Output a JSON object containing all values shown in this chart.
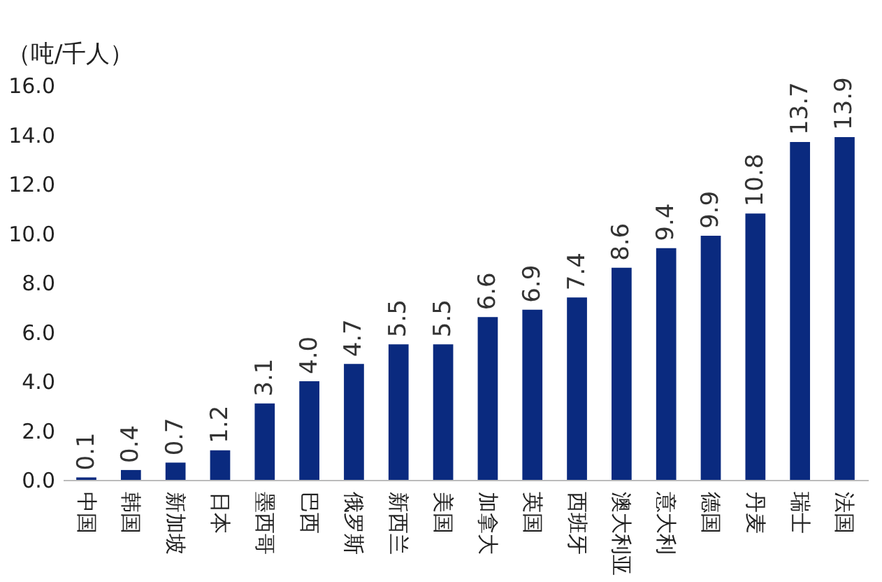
{
  "chart_data": {
    "type": "bar",
    "ylabel": "（吨/千人）",
    "categories": [
      "中国",
      "韩国",
      "新加坡",
      "日本",
      "墨西哥",
      "巴西",
      "俄罗斯",
      "新西兰",
      "美国",
      "加拿大",
      "英国",
      "西班牙",
      "澳大利亚",
      "意大利",
      "德国",
      "丹麦",
      "瑞士",
      "法国"
    ],
    "values": [
      0.1,
      0.4,
      0.7,
      1.2,
      3.1,
      4.0,
      4.7,
      5.5,
      5.5,
      6.6,
      6.9,
      7.4,
      8.6,
      9.4,
      9.9,
      10.8,
      13.7,
      13.9
    ],
    "value_labels": [
      "0.1",
      "0.4",
      "0.7",
      "1.2",
      "3.1",
      "4.0",
      "4.7",
      "5.5",
      "5.5",
      "6.6",
      "6.9",
      "7.4",
      "8.6",
      "9.4",
      "9.9",
      "10.8",
      "13.7",
      "13.9"
    ],
    "color": "#0a2a7f",
    "ylim": [
      0,
      16
    ],
    "yticks": [
      {
        "value": 0,
        "label": "0.0"
      },
      {
        "value": 2,
        "label": "2.0"
      },
      {
        "value": 4,
        "label": "4.0"
      },
      {
        "value": 6,
        "label": "6.0"
      },
      {
        "value": 8,
        "label": "8.0"
      },
      {
        "value": 10,
        "label": "10.0"
      },
      {
        "value": 12,
        "label": "12.0"
      },
      {
        "value": 14,
        "label": "14.0"
      },
      {
        "value": 16,
        "label": "16.0"
      }
    ],
    "grid": false
  }
}
